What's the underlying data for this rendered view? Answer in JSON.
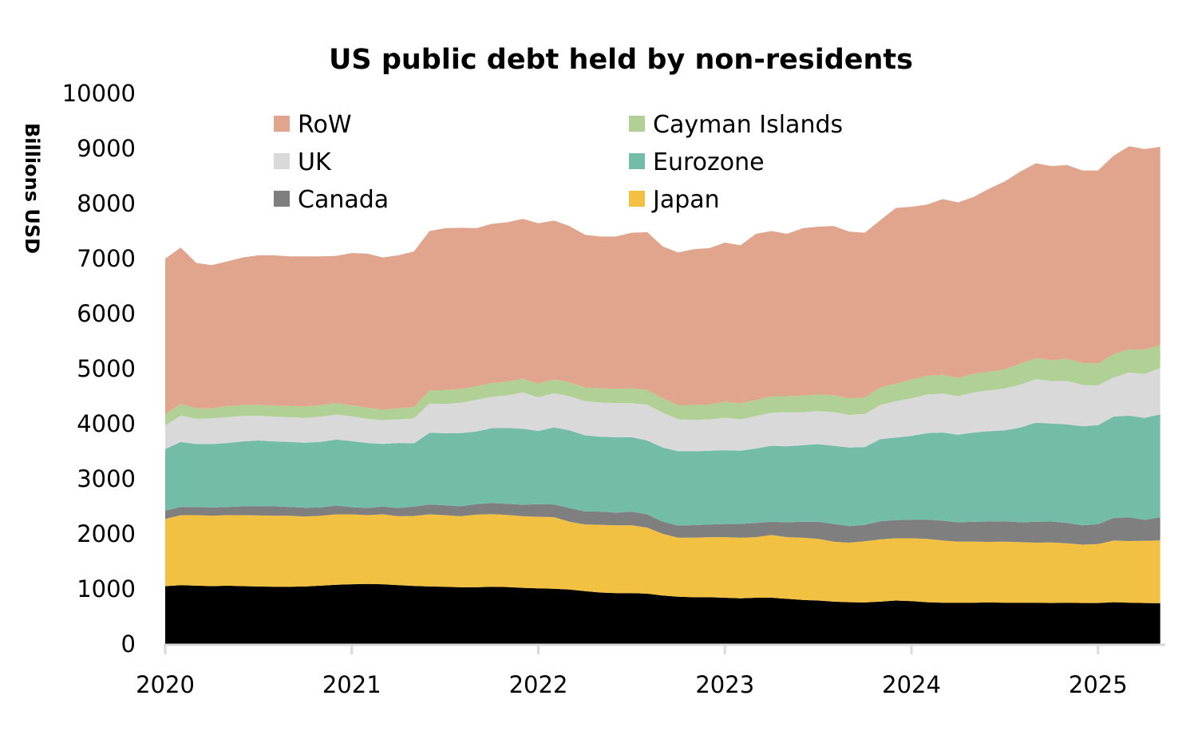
{
  "chart_data": {
    "type": "area",
    "stacked": true,
    "title": "US public debt held by non-residents",
    "ylabel": "Billions USD",
    "xlabel": "",
    "ylim": [
      0,
      10000
    ],
    "yticks": [
      "0",
      "1000",
      "2000",
      "3000",
      "4000",
      "5000",
      "6000",
      "7000",
      "8000",
      "9000",
      "10000"
    ],
    "xticks": [
      "2020",
      "2021",
      "2022",
      "2023",
      "2024",
      "2025"
    ],
    "x_start": "2020-01",
    "x_end": "2025-05",
    "x_frequency": "monthly",
    "grid": false,
    "legend_position": "top",
    "legend": [
      "RoW",
      "Cayman Islands",
      "UK",
      "Eurozone",
      "Canada",
      "Japan"
    ],
    "series": [
      {
        "color": "#000000",
        "values": [
          1050,
          1070,
          1060,
          1050,
          1060,
          1050,
          1045,
          1040,
          1040,
          1045,
          1060,
          1075,
          1085,
          1090,
          1085,
          1070,
          1055,
          1045,
          1040,
          1030,
          1030,
          1040,
          1035,
          1020,
          1010,
          1005,
          990,
          960,
          935,
          925,
          925,
          915,
          880,
          860,
          850,
          850,
          840,
          830,
          840,
          840,
          820,
          800,
          790,
          770,
          760,
          755,
          770,
          790,
          780,
          760,
          750,
          750,
          750,
          755,
          750,
          750,
          750,
          745,
          750,
          745,
          745,
          760,
          750,
          745,
          740
        ]
      },
      {
        "name": "Japan",
        "color": "#f2c142",
        "values": [
          1220,
          1270,
          1280,
          1280,
          1280,
          1290,
          1290,
          1290,
          1290,
          1270,
          1270,
          1280,
          1270,
          1250,
          1270,
          1250,
          1270,
          1310,
          1300,
          1290,
          1320,
          1320,
          1310,
          1300,
          1300,
          1300,
          1230,
          1210,
          1230,
          1230,
          1230,
          1200,
          1120,
          1070,
          1080,
          1090,
          1100,
          1100,
          1100,
          1140,
          1120,
          1130,
          1120,
          1090,
          1080,
          1110,
          1130,
          1130,
          1140,
          1150,
          1130,
          1110,
          1110,
          1100,
          1110,
          1100,
          1090,
          1100,
          1080,
          1060,
          1070,
          1120,
          1120,
          1130,
          1140
        ]
      },
      {
        "name": "Canada",
        "color": "#7f7f7f",
        "values": [
          150,
          150,
          150,
          150,
          150,
          160,
          170,
          170,
          160,
          160,
          150,
          160,
          130,
          130,
          140,
          150,
          170,
          180,
          180,
          180,
          190,
          200,
          200,
          210,
          230,
          230,
          250,
          240,
          240,
          230,
          250,
          240,
          220,
          220,
          230,
          230,
          240,
          250,
          260,
          240,
          270,
          290,
          310,
          320,
          300,
          300,
          330,
          330,
          340,
          350,
          360,
          350,
          360,
          370,
          370,
          360,
          380,
          380,
          370,
          350,
          360,
          410,
          430,
          380,
          420
        ]
      },
      {
        "name": "Eurozone",
        "color": "#72bca8",
        "values": [
          1120,
          1180,
          1140,
          1150,
          1160,
          1180,
          1190,
          1180,
          1180,
          1180,
          1190,
          1200,
          1200,
          1180,
          1140,
          1180,
          1150,
          1300,
          1310,
          1330,
          1320,
          1360,
          1380,
          1380,
          1330,
          1400,
          1410,
          1380,
          1360,
          1370,
          1350,
          1340,
          1350,
          1350,
          1340,
          1340,
          1340,
          1330,
          1350,
          1380,
          1380,
          1390,
          1410,
          1420,
          1430,
          1410,
          1490,
          1500,
          1520,
          1570,
          1600,
          1590,
          1620,
          1640,
          1650,
          1720,
          1800,
          1780,
          1790,
          1800,
          1800,
          1840,
          1850,
          1850,
          1870
        ]
      },
      {
        "name": "UK",
        "color": "#d9d9d9",
        "values": [
          430,
          480,
          460,
          470,
          470,
          460,
          450,
          450,
          450,
          450,
          460,
          450,
          450,
          440,
          430,
          430,
          450,
          530,
          530,
          550,
          570,
          570,
          590,
          660,
          610,
          620,
          620,
          620,
          620,
          620,
          620,
          650,
          630,
          580,
          570,
          570,
          590,
          570,
          590,
          600,
          620,
          600,
          600,
          610,
          590,
          600,
          620,
          660,
          680,
          700,
          710,
          700,
          730,
          740,
          760,
          780,
          790,
          770,
          790,
          750,
          720,
          710,
          780,
          800,
          840
        ]
      },
      {
        "name": "Cayman Islands",
        "color": "#b0d095",
        "values": [
          200,
          210,
          190,
          180,
          200,
          200,
          200,
          200,
          200,
          210,
          210,
          210,
          200,
          200,
          190,
          200,
          210,
          240,
          250,
          250,
          250,
          250,
          250,
          250,
          250,
          250,
          250,
          250,
          260,
          260,
          270,
          270,
          260,
          260,
          270,
          270,
          290,
          290,
          290,
          300,
          290,
          300,
          300,
          310,
          300,
          300,
          320,
          320,
          340,
          340,
          340,
          330,
          340,
          340,
          350,
          380,
          380,
          380,
          400,
          400,
          400,
          420,
          420,
          440,
          420
        ]
      },
      {
        "name": "RoW",
        "color": "#e1a48c",
        "values": [
          2830,
          2840,
          2640,
          2600,
          2630,
          2680,
          2715,
          2730,
          2720,
          2725,
          2700,
          2675,
          2765,
          2800,
          2765,
          2780,
          2825,
          2895,
          2940,
          2930,
          2870,
          2890,
          2895,
          2900,
          2910,
          2885,
          2840,
          2770,
          2755,
          2765,
          2825,
          2865,
          2760,
          2770,
          2830,
          2840,
          2890,
          2870,
          3020,
          3000,
          2950,
          3040,
          3050,
          3070,
          3030,
          2995,
          3040,
          3190,
          3140,
          3110,
          3190,
          3190,
          3210,
          3325,
          3410,
          3490,
          3540,
          3525,
          3520,
          3495,
          3505,
          3610,
          3690,
          3645,
          3600
        ]
      }
    ]
  }
}
